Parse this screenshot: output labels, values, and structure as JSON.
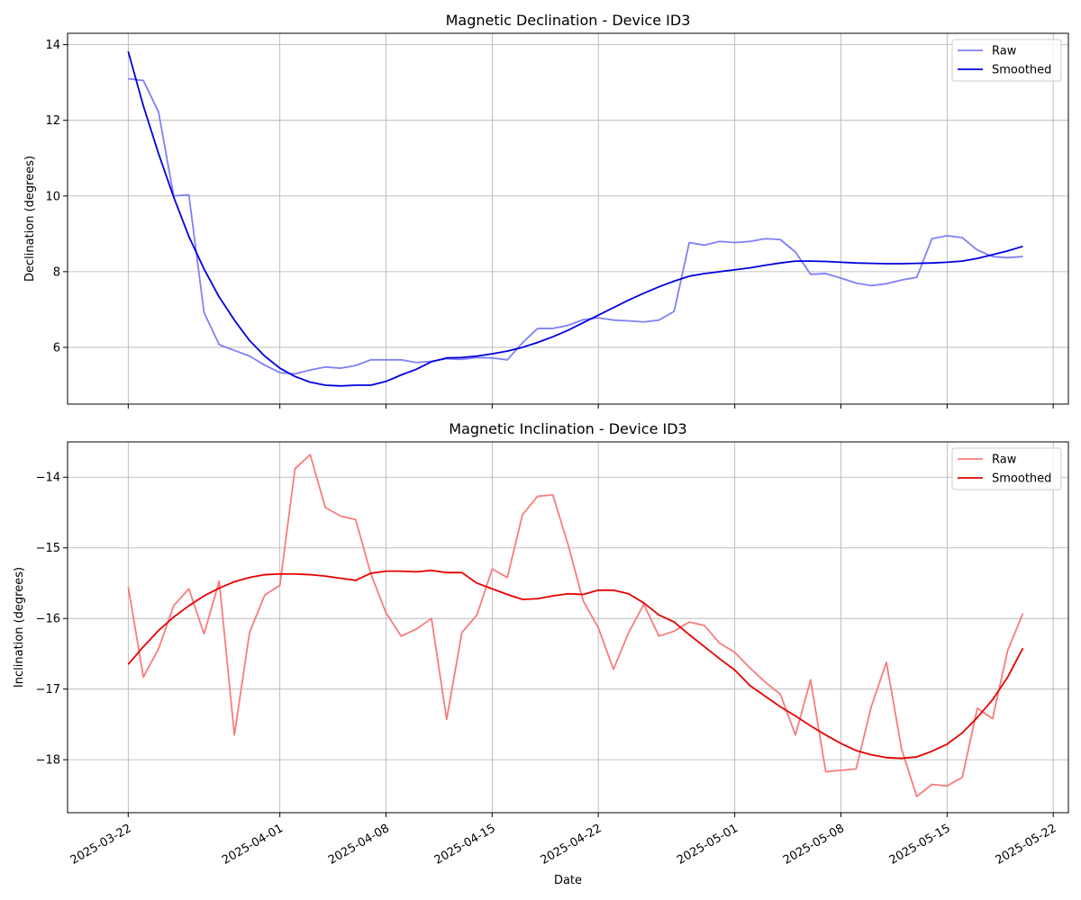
{
  "chart_data": [
    {
      "type": "line",
      "title": "Magnetic Declination - Device ID3",
      "xlabel": "",
      "ylabel": "Declination (degrees)",
      "x_axis": "date",
      "xlim": [
        "2025-03-18",
        "2025-05-23"
      ],
      "ylim": [
        4.5,
        14.3
      ],
      "yticks": [
        6,
        8,
        10,
        12,
        14
      ],
      "grid": true,
      "legend": "top-right",
      "colors": {
        "raw": "#8080f8",
        "smoothed": "#0000dd"
      },
      "x": [
        "2025-03-22",
        "2025-03-23",
        "2025-03-24",
        "2025-03-25",
        "2025-03-26",
        "2025-03-27",
        "2025-03-28",
        "2025-03-29",
        "2025-03-30",
        "2025-03-31",
        "2025-04-01",
        "2025-04-02",
        "2025-04-03",
        "2025-04-04",
        "2025-04-05",
        "2025-04-06",
        "2025-04-07",
        "2025-04-08",
        "2025-04-09",
        "2025-04-10",
        "2025-04-11",
        "2025-04-12",
        "2025-04-13",
        "2025-04-14",
        "2025-04-15",
        "2025-04-16",
        "2025-04-17",
        "2025-04-18",
        "2025-04-19",
        "2025-04-20",
        "2025-04-21",
        "2025-04-22",
        "2025-04-23",
        "2025-04-24",
        "2025-04-25",
        "2025-04-26",
        "2025-04-27",
        "2025-04-28",
        "2025-04-29",
        "2025-04-30",
        "2025-05-01",
        "2025-05-02",
        "2025-05-03",
        "2025-05-04",
        "2025-05-05",
        "2025-05-06",
        "2025-05-07",
        "2025-05-08",
        "2025-05-09",
        "2025-05-10",
        "2025-05-11",
        "2025-05-12",
        "2025-05-13",
        "2025-05-14",
        "2025-05-15",
        "2025-05-16",
        "2025-05-17",
        "2025-05-18",
        "2025-05-19",
        "2025-05-20"
      ],
      "series": [
        {
          "name": "Raw",
          "values": [
            13.1,
            13.05,
            12.22,
            10.0,
            10.03,
            6.92,
            6.07,
            5.92,
            5.77,
            5.53,
            5.33,
            5.3,
            5.4,
            5.48,
            5.45,
            5.52,
            5.67,
            5.67,
            5.67,
            5.6,
            5.63,
            5.7,
            5.68,
            5.73,
            5.72,
            5.67,
            6.12,
            6.5,
            6.5,
            6.58,
            6.73,
            6.78,
            6.72,
            6.7,
            6.67,
            6.72,
            6.95,
            8.77,
            8.7,
            8.8,
            8.77,
            8.8,
            8.87,
            8.85,
            8.52,
            7.93,
            7.95,
            7.83,
            7.7,
            7.63,
            7.68,
            7.78,
            7.85,
            8.87,
            8.95,
            8.9,
            8.57,
            8.4,
            8.37,
            8.4
          ]
        },
        {
          "name": "Smoothed",
          "values": [
            13.82,
            12.38,
            11.12,
            9.97,
            8.93,
            8.07,
            7.33,
            6.72,
            6.18,
            5.77,
            5.45,
            5.23,
            5.08,
            5.0,
            4.98,
            5.0,
            5.0,
            5.1,
            5.27,
            5.42,
            5.62,
            5.72,
            5.73,
            5.77,
            5.83,
            5.9,
            6.0,
            6.13,
            6.28,
            6.45,
            6.65,
            6.85,
            7.05,
            7.25,
            7.43,
            7.6,
            7.75,
            7.88,
            7.95,
            8.0,
            8.05,
            8.1,
            8.17,
            8.23,
            8.28,
            8.28,
            8.27,
            8.25,
            8.23,
            8.22,
            8.21,
            8.21,
            8.22,
            8.23,
            8.25,
            8.28,
            8.35,
            8.45,
            8.55,
            8.67
          ]
        }
      ]
    },
    {
      "type": "line",
      "title": "Magnetic Inclination - Device ID3",
      "xlabel": "Date",
      "ylabel": "Inclination (degrees)",
      "x_axis": "date",
      "xlim": [
        "2025-03-18",
        "2025-05-23"
      ],
      "ylim": [
        -18.75,
        -13.5
      ],
      "yticks": [
        -14,
        -15,
        -16,
        -17,
        -18
      ],
      "ytick_labels": [
        "−14",
        "−15",
        "−16",
        "−17",
        "−18"
      ],
      "xticks": [
        "2025-03-22",
        "2025-04-01",
        "2025-04-08",
        "2025-04-15",
        "2025-04-22",
        "2025-05-01",
        "2025-05-08",
        "2025-05-15",
        "2025-05-22"
      ],
      "grid": true,
      "legend": "top-right",
      "colors": {
        "raw": "#f87c7c",
        "smoothed": "#e80000"
      },
      "x": [
        "2025-03-22",
        "2025-03-23",
        "2025-03-24",
        "2025-03-25",
        "2025-03-26",
        "2025-03-27",
        "2025-03-28",
        "2025-03-29",
        "2025-03-30",
        "2025-03-31",
        "2025-04-01",
        "2025-04-02",
        "2025-04-03",
        "2025-04-04",
        "2025-04-05",
        "2025-04-06",
        "2025-04-07",
        "2025-04-08",
        "2025-04-09",
        "2025-04-10",
        "2025-04-11",
        "2025-04-12",
        "2025-04-13",
        "2025-04-14",
        "2025-04-15",
        "2025-04-16",
        "2025-04-17",
        "2025-04-18",
        "2025-04-19",
        "2025-04-20",
        "2025-04-21",
        "2025-04-22",
        "2025-04-23",
        "2025-04-24",
        "2025-04-25",
        "2025-04-26",
        "2025-04-27",
        "2025-04-28",
        "2025-04-29",
        "2025-04-30",
        "2025-05-01",
        "2025-05-02",
        "2025-05-03",
        "2025-05-04",
        "2025-05-05",
        "2025-05-06",
        "2025-05-07",
        "2025-05-08",
        "2025-05-09",
        "2025-05-10",
        "2025-05-11",
        "2025-05-12",
        "2025-05-13",
        "2025-05-14",
        "2025-05-15",
        "2025-05-16",
        "2025-05-17",
        "2025-05-18",
        "2025-05-19",
        "2025-05-20"
      ],
      "series": [
        {
          "name": "Raw",
          "values": [
            -15.55,
            -16.83,
            -16.43,
            -15.82,
            -15.58,
            -16.22,
            -15.47,
            -17.65,
            -16.2,
            -15.67,
            -15.53,
            -13.88,
            -13.68,
            -14.43,
            -14.55,
            -14.6,
            -15.37,
            -15.92,
            -16.25,
            -16.15,
            -16.0,
            -17.43,
            -16.2,
            -15.95,
            -15.3,
            -15.42,
            -14.53,
            -14.27,
            -14.25,
            -14.95,
            -15.75,
            -16.13,
            -16.72,
            -16.2,
            -15.8,
            -16.25,
            -16.18,
            -16.05,
            -16.1,
            -16.35,
            -16.48,
            -16.7,
            -16.9,
            -17.07,
            -17.65,
            -16.87,
            -18.17,
            -18.15,
            -18.13,
            -17.25,
            -16.62,
            -17.85,
            -18.52,
            -18.35,
            -18.37,
            -18.25,
            -17.27,
            -17.42,
            -16.45,
            -15.93
          ]
        },
        {
          "name": "Smoothed",
          "values": [
            -16.65,
            -16.4,
            -16.17,
            -15.98,
            -15.82,
            -15.68,
            -15.57,
            -15.48,
            -15.42,
            -15.38,
            -15.37,
            -15.37,
            -15.38,
            -15.4,
            -15.43,
            -15.46,
            -15.36,
            -15.33,
            -15.33,
            -15.34,
            -15.32,
            -15.35,
            -15.35,
            -15.5,
            -15.58,
            -15.66,
            -15.73,
            -15.72,
            -15.68,
            -15.65,
            -15.66,
            -15.6,
            -15.6,
            -15.65,
            -15.78,
            -15.95,
            -16.05,
            -16.23,
            -16.4,
            -16.57,
            -16.73,
            -16.95,
            -17.1,
            -17.25,
            -17.38,
            -17.52,
            -17.65,
            -17.77,
            -17.87,
            -17.93,
            -17.97,
            -17.98,
            -17.96,
            -17.88,
            -17.78,
            -17.62,
            -17.4,
            -17.15,
            -16.83,
            -16.42
          ]
        }
      ]
    }
  ]
}
